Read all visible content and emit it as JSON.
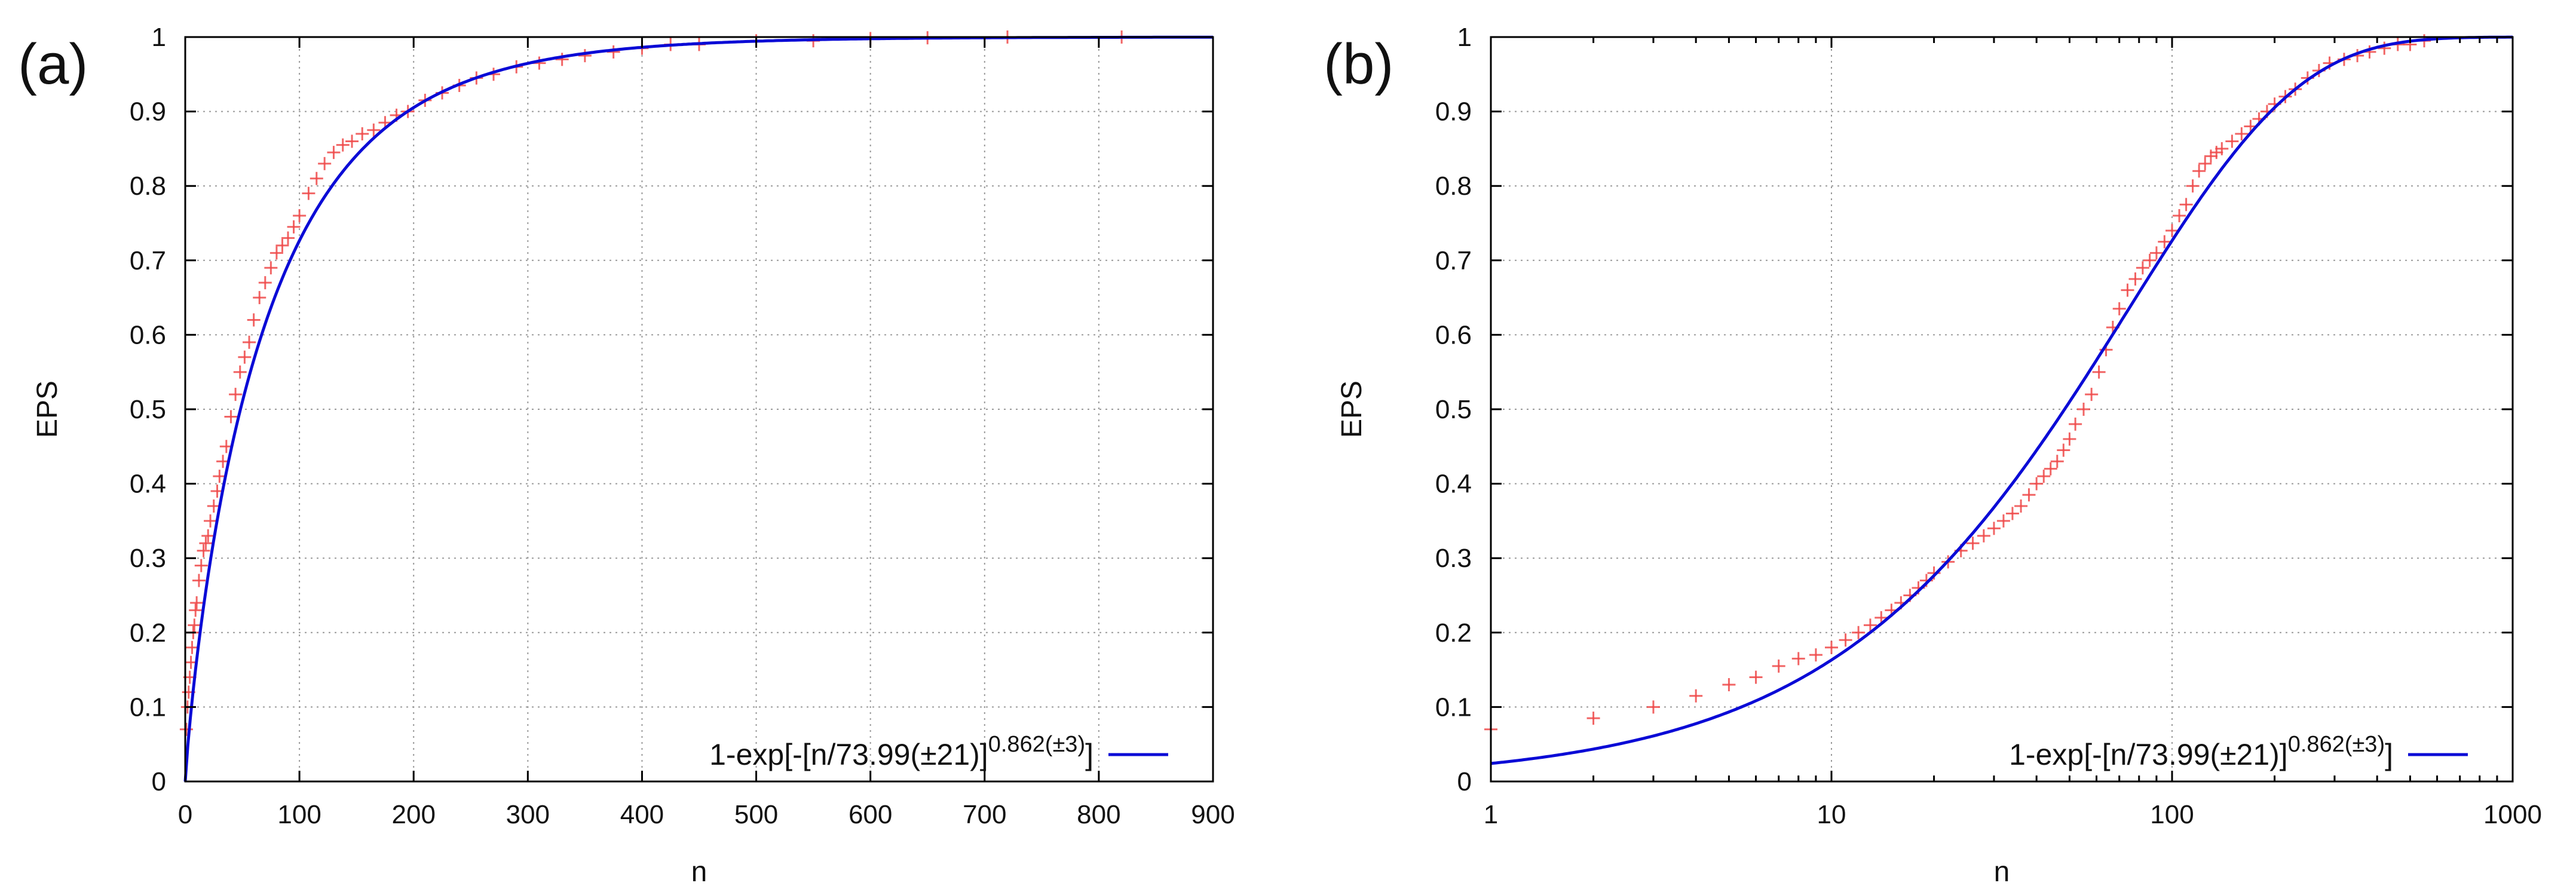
{
  "chart_data": [
    {
      "panel_label": "(a)",
      "type": "scatter",
      "xlabel": "n",
      "ylabel": "EPS",
      "x_scale": "linear",
      "xlim": [
        0,
        900
      ],
      "ylim": [
        0,
        1
      ],
      "x_ticks": [
        "0",
        "100",
        "200",
        "300",
        "400",
        "500",
        "600",
        "700",
        "800",
        "900"
      ],
      "y_ticks": [
        "0",
        "0.1",
        "0.2",
        "0.3",
        "0.4",
        "0.5",
        "0.6",
        "0.7",
        "0.8",
        "0.9",
        "1"
      ],
      "grid": true,
      "legend_position": "bottom-right",
      "series": [
        {
          "name": "data",
          "kind": "points",
          "color": "#ef4a4a",
          "x": [
            1,
            2,
            3,
            4,
            5,
            6,
            7,
            8,
            9,
            10,
            12,
            14,
            16,
            18,
            20,
            22,
            25,
            28,
            30,
            33,
            36,
            40,
            44,
            48,
            52,
            56,
            60,
            65,
            70,
            75,
            80,
            85,
            90,
            95,
            100,
            108,
            115,
            122,
            130,
            138,
            146,
            155,
            165,
            175,
            185,
            195,
            210,
            225,
            240,
            255,
            270,
            290,
            310,
            330,
            350,
            375,
            400,
            425,
            450,
            500,
            550,
            600,
            650,
            720,
            820
          ],
          "y": [
            0.07,
            0.1,
            0.12,
            0.14,
            0.16,
            0.18,
            0.2,
            0.21,
            0.23,
            0.24,
            0.27,
            0.29,
            0.31,
            0.32,
            0.33,
            0.35,
            0.37,
            0.39,
            0.41,
            0.43,
            0.45,
            0.49,
            0.52,
            0.55,
            0.57,
            0.59,
            0.62,
            0.65,
            0.67,
            0.69,
            0.71,
            0.72,
            0.73,
            0.745,
            0.76,
            0.79,
            0.81,
            0.83,
            0.845,
            0.855,
            0.86,
            0.87,
            0.875,
            0.885,
            0.895,
            0.9,
            0.915,
            0.925,
            0.935,
            0.945,
            0.95,
            0.96,
            0.965,
            0.97,
            0.975,
            0.98,
            0.985,
            0.99,
            0.99,
            0.995,
            0.995,
            0.998,
            0.999,
            1.0,
            1.0
          ]
        },
        {
          "name": "1-exp[-[n/73.99(±21)]^0.862(±3)]",
          "kind": "fit",
          "color": "#0b0bd6",
          "scale": 73.99,
          "shape": 0.862
        }
      ],
      "legend": {
        "main": "1-exp[-[n/73.99(±21)]",
        "exponent": "0.862(±3)",
        "close": "]"
      }
    },
    {
      "panel_label": "(b)",
      "type": "scatter",
      "xlabel": "n",
      "ylabel": "EPS",
      "x_scale": "log",
      "xlim": [
        1,
        1000
      ],
      "ylim": [
        0,
        1
      ],
      "x_ticks": [
        "1",
        "10",
        "100",
        "1000"
      ],
      "y_ticks": [
        "0",
        "0.1",
        "0.2",
        "0.3",
        "0.4",
        "0.5",
        "0.6",
        "0.7",
        "0.8",
        "0.9",
        "1"
      ],
      "grid": true,
      "legend_position": "bottom-right",
      "series": [
        {
          "name": "data",
          "kind": "points",
          "color": "#ef4a4a",
          "x": [
            1,
            2,
            3,
            4,
            5,
            6,
            7,
            8,
            9,
            10,
            11,
            12,
            13,
            14,
            15,
            16,
            17,
            18,
            19,
            20,
            22,
            24,
            26,
            28,
            30,
            32,
            34,
            36,
            38,
            40,
            42,
            44,
            46,
            48,
            50,
            52,
            55,
            58,
            61,
            64,
            67,
            70,
            74,
            78,
            82,
            86,
            90,
            95,
            100,
            105,
            110,
            115,
            120,
            125,
            130,
            135,
            140,
            150,
            160,
            170,
            180,
            190,
            200,
            215,
            230,
            250,
            270,
            290,
            320,
            350,
            380,
            420,
            460,
            500,
            550
          ],
          "y": [
            0.07,
            0.085,
            0.1,
            0.115,
            0.13,
            0.14,
            0.155,
            0.165,
            0.17,
            0.18,
            0.19,
            0.2,
            0.21,
            0.22,
            0.23,
            0.24,
            0.25,
            0.26,
            0.27,
            0.28,
            0.295,
            0.31,
            0.32,
            0.33,
            0.34,
            0.35,
            0.36,
            0.37,
            0.385,
            0.4,
            0.41,
            0.42,
            0.43,
            0.445,
            0.46,
            0.48,
            0.5,
            0.52,
            0.55,
            0.58,
            0.61,
            0.635,
            0.66,
            0.675,
            0.69,
            0.7,
            0.71,
            0.725,
            0.74,
            0.76,
            0.775,
            0.8,
            0.82,
            0.83,
            0.84,
            0.845,
            0.85,
            0.86,
            0.87,
            0.88,
            0.89,
            0.9,
            0.91,
            0.92,
            0.93,
            0.945,
            0.955,
            0.965,
            0.97,
            0.975,
            0.98,
            0.985,
            0.99,
            0.99,
            0.995
          ]
        },
        {
          "name": "1-exp[-[n/73.99(±21)]^0.862(±3)]",
          "kind": "fit",
          "color": "#0b0bd6",
          "scale": 73.99,
          "shape": 0.862
        }
      ],
      "legend": {
        "main": "1-exp[-[n/73.99(±21)]",
        "exponent": "0.862(±3)",
        "close": "]"
      }
    }
  ]
}
